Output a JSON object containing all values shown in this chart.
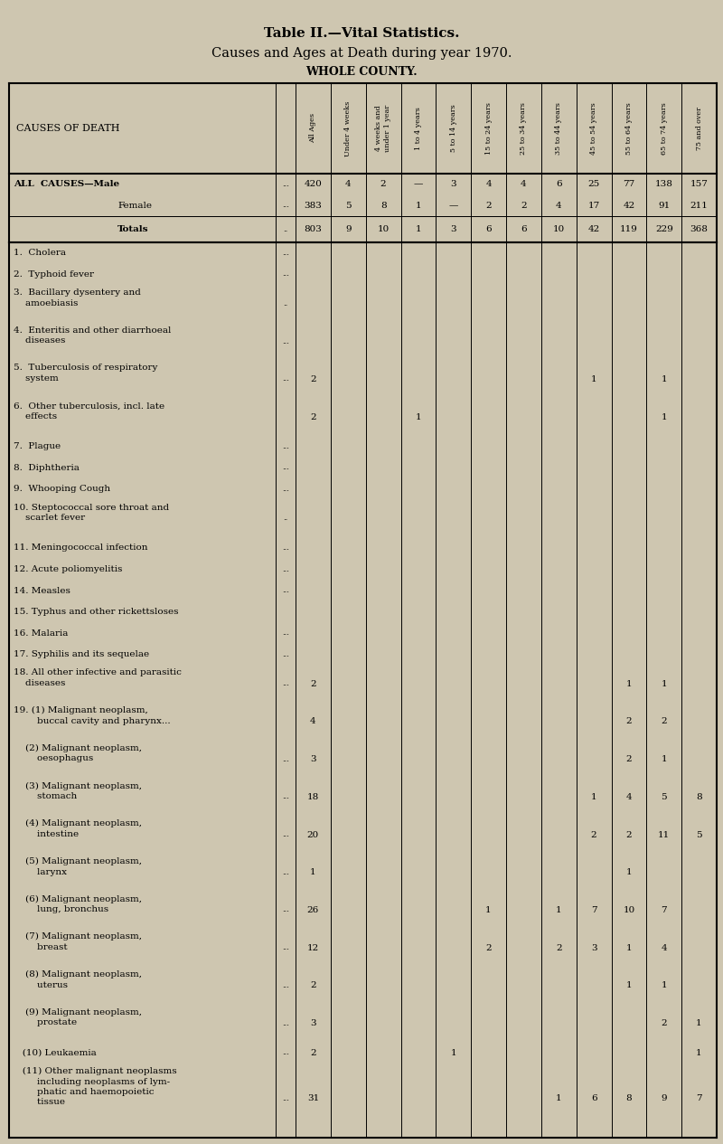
{
  "title1": "Table II.—Vital Statistics.",
  "title2": "Causes and Ages at Death during year 1970.",
  "title3": "WHOLE COUNTY.",
  "bg_color": "#cec6b0",
  "col_header_texts": [
    "All Ages",
    "Under 4 weeks",
    "4 weeks and\nunder 1 year",
    "1 to 4 years",
    "5 to 14 years",
    "15 to 24 years",
    "25 to 34 years",
    "35 to 44 years",
    "45 to 54 years",
    "55 to 64 years",
    "65 to 74 years",
    "75 and over"
  ],
  "rows": [
    {
      "label": "ALL  CAUSES—Male",
      "sub": false,
      "bold": true,
      "dots": "...",
      "lines": 1,
      "totals": false,
      "separator_before": false,
      "separator_after": false,
      "data": [
        "420",
        "4",
        "2",
        "—",
        "3",
        "4",
        "4",
        "6",
        "25",
        "77",
        "138",
        "157"
      ]
    },
    {
      "label": "Female",
      "sub": true,
      "bold": false,
      "dots": "...",
      "lines": 1,
      "totals": false,
      "separator_before": false,
      "separator_after": true,
      "data": [
        "383",
        "5",
        "8",
        "1",
        "—",
        "2",
        "2",
        "4",
        "17",
        "42",
        "91",
        "211"
      ]
    },
    {
      "label": "Totals",
      "sub": true,
      "bold": true,
      "dots": "..",
      "lines": 1,
      "totals": true,
      "separator_before": false,
      "separator_after": true,
      "data": [
        "803",
        "9",
        "10",
        "1",
        "3",
        "6",
        "6",
        "10",
        "42",
        "119",
        "229",
        "368"
      ]
    },
    {
      "label": "1.  Cholera",
      "sub": false,
      "bold": false,
      "dots": "...",
      "lines": 1,
      "totals": false,
      "separator_before": true,
      "separator_after": false,
      "data": [
        "",
        "",
        "",
        "",
        "",
        "",
        "",
        "",
        "",
        "",
        "",
        ""
      ]
    },
    {
      "label": "2.  Typhoid fever",
      "sub": false,
      "bold": false,
      "dots": "...",
      "lines": 1,
      "totals": false,
      "separator_before": false,
      "separator_after": false,
      "data": [
        "",
        "",
        "",
        "",
        "",
        "",
        "",
        "",
        "",
        "",
        "",
        ""
      ]
    },
    {
      "label": "3.  Bacillary dysentery and\n    amoebiasis",
      "sub": false,
      "bold": false,
      "dots": "..",
      "lines": 2,
      "totals": false,
      "separator_before": false,
      "separator_after": false,
      "data": [
        "",
        "",
        "",
        "",
        "",
        "",
        "",
        "",
        "",
        "",
        "",
        ""
      ]
    },
    {
      "label": "4.  Enteritis and other diarrhoeal\n    diseases",
      "sub": false,
      "bold": false,
      "dots": "...",
      "lines": 2,
      "totals": false,
      "separator_before": false,
      "separator_after": false,
      "data": [
        "",
        "",
        "",
        "",
        "",
        "",
        "",
        "",
        "",
        "",
        "",
        ""
      ]
    },
    {
      "label": "5.  Tuberculosis of respiratory\n    system",
      "sub": false,
      "bold": false,
      "dots": "...",
      "lines": 2,
      "totals": false,
      "separator_before": false,
      "separator_after": false,
      "data": [
        "2",
        "",
        "",
        "",
        "",
        "",
        "",
        "",
        "1",
        "",
        "1",
        ""
      ]
    },
    {
      "label": "6.  Other tuberculosis, incl. late\n    effects",
      "sub": false,
      "bold": false,
      "dots": "",
      "lines": 2,
      "totals": false,
      "separator_before": false,
      "separator_after": false,
      "data": [
        "2",
        "",
        "",
        "1",
        "",
        "",
        "",
        "",
        "",
        "",
        "1",
        ""
      ]
    },
    {
      "label": "7.  Plague",
      "sub": false,
      "bold": false,
      "dots": "...",
      "lines": 1,
      "totals": false,
      "separator_before": false,
      "separator_after": false,
      "data": [
        "",
        "",
        "",
        "",
        "",
        "",
        "",
        "",
        "",
        "",
        "",
        ""
      ]
    },
    {
      "label": "8.  Diphtheria",
      "sub": false,
      "bold": false,
      "dots": "...",
      "lines": 1,
      "totals": false,
      "separator_before": false,
      "separator_after": false,
      "data": [
        "",
        "",
        "",
        "",
        "",
        "",
        "",
        "",
        "",
        "",
        "",
        ""
      ]
    },
    {
      "label": "9.  Whooping Cough",
      "sub": false,
      "bold": false,
      "dots": "...",
      "lines": 1,
      "totals": false,
      "separator_before": false,
      "separator_after": false,
      "data": [
        "",
        "",
        "",
        "",
        "",
        "",
        "",
        "",
        "",
        "",
        "",
        ""
      ]
    },
    {
      "label": "10. Steptococcal sore throat and\n    scarlet fever",
      "sub": false,
      "bold": false,
      "dots": "..",
      "lines": 2,
      "totals": false,
      "separator_before": false,
      "separator_after": false,
      "data": [
        "",
        "",
        "",
        "",
        "",
        "",
        "",
        "",
        "",
        "",
        "",
        ""
      ]
    },
    {
      "label": "11. Meningococcal infection",
      "sub": false,
      "bold": false,
      "dots": "...",
      "lines": 1,
      "totals": false,
      "separator_before": false,
      "separator_after": false,
      "data": [
        "",
        "",
        "",
        "",
        "",
        "",
        "",
        "",
        "",
        "",
        "",
        ""
      ]
    },
    {
      "label": "12. Acute poliomyelitis",
      "sub": false,
      "bold": false,
      "dots": "...",
      "lines": 1,
      "totals": false,
      "separator_before": false,
      "separator_after": false,
      "data": [
        "",
        "",
        "",
        "",
        "",
        "",
        "",
        "",
        "",
        "",
        "",
        ""
      ]
    },
    {
      "label": "14. Measles",
      "sub": false,
      "bold": false,
      "dots": "...",
      "lines": 1,
      "totals": false,
      "separator_before": false,
      "separator_after": false,
      "data": [
        "",
        "",
        "",
        "",
        "",
        "",
        "",
        "",
        "",
        "",
        "",
        ""
      ]
    },
    {
      "label": "15. Typhus and other rickettsloses",
      "sub": false,
      "bold": false,
      "dots": "",
      "lines": 1,
      "totals": false,
      "separator_before": false,
      "separator_after": false,
      "data": [
        "",
        "",
        "",
        "",
        "",
        "",
        "",
        "",
        "",
        "",
        "",
        ""
      ]
    },
    {
      "label": "16. Malaria",
      "sub": false,
      "bold": false,
      "dots": "...",
      "lines": 1,
      "totals": false,
      "separator_before": false,
      "separator_after": false,
      "data": [
        "",
        "",
        "",
        "",
        "",
        "",
        "",
        "",
        "",
        "",
        "",
        ""
      ]
    },
    {
      "label": "17. Syphilis and its sequelae",
      "sub": false,
      "bold": false,
      "dots": "...",
      "lines": 1,
      "totals": false,
      "separator_before": false,
      "separator_after": false,
      "data": [
        "",
        "",
        "",
        "",
        "",
        "",
        "",
        "",
        "",
        "",
        "",
        ""
      ]
    },
    {
      "label": "18. All other infective and parasitic\n    diseases",
      "sub": false,
      "bold": false,
      "dots": "...",
      "lines": 2,
      "totals": false,
      "separator_before": false,
      "separator_after": false,
      "data": [
        "2",
        "",
        "",
        "",
        "",
        "",
        "",
        "",
        "",
        "1",
        "1",
        ""
      ]
    },
    {
      "label": "19. (1) Malignant neoplasm,\n        buccal cavity and pharynx...",
      "sub": false,
      "bold": false,
      "dots": "",
      "lines": 2,
      "totals": false,
      "separator_before": false,
      "separator_after": false,
      "data": [
        "4",
        "",
        "",
        "",
        "",
        "",
        "",
        "",
        "",
        "2",
        "2",
        ""
      ]
    },
    {
      "label": "    (2) Malignant neoplasm,\n        oesophagus",
      "sub": false,
      "bold": false,
      "dots": "...",
      "lines": 2,
      "totals": false,
      "separator_before": false,
      "separator_after": false,
      "data": [
        "3",
        "",
        "",
        "",
        "",
        "",
        "",
        "",
        "",
        "2",
        "1",
        ""
      ]
    },
    {
      "label": "    (3) Malignant neoplasm,\n        stomach",
      "sub": false,
      "bold": false,
      "dots": "...",
      "lines": 2,
      "totals": false,
      "separator_before": false,
      "separator_after": false,
      "data": [
        "18",
        "",
        "",
        "",
        "",
        "",
        "",
        "",
        "1",
        "4",
        "5",
        "8"
      ]
    },
    {
      "label": "    (4) Malignant neoplasm,\n        intestine",
      "sub": false,
      "bold": false,
      "dots": "...",
      "lines": 2,
      "totals": false,
      "separator_before": false,
      "separator_after": false,
      "data": [
        "20",
        "",
        "",
        "",
        "",
        "",
        "",
        "",
        "2",
        "2",
        "11",
        "5"
      ]
    },
    {
      "label": "    (5) Malignant neoplasm,\n        larynx",
      "sub": false,
      "bold": false,
      "dots": "...",
      "lines": 2,
      "totals": false,
      "separator_before": false,
      "separator_after": false,
      "data": [
        "1",
        "",
        "",
        "",
        "",
        "",
        "",
        "",
        "",
        "1",
        "",
        ""
      ]
    },
    {
      "label": "    (6) Malignant neoplasm,\n        lung, bronchus",
      "sub": false,
      "bold": false,
      "dots": "...",
      "lines": 2,
      "totals": false,
      "separator_before": false,
      "separator_after": false,
      "data": [
        "26",
        "",
        "",
        "",
        "",
        "1",
        "",
        "1",
        "7",
        "10",
        "7",
        ""
      ]
    },
    {
      "label": "    (7) Malignant neoplasm,\n        breast",
      "sub": false,
      "bold": false,
      "dots": "...",
      "lines": 2,
      "totals": false,
      "separator_before": false,
      "separator_after": false,
      "data": [
        "12",
        "",
        "",
        "",
        "",
        "2",
        "",
        "2",
        "3",
        "1",
        "4",
        ""
      ]
    },
    {
      "label": "    (8) Malignant neoplasm,\n        uterus",
      "sub": false,
      "bold": false,
      "dots": "...",
      "lines": 2,
      "totals": false,
      "separator_before": false,
      "separator_after": false,
      "data": [
        "2",
        "",
        "",
        "",
        "",
        "",
        "",
        "",
        "",
        "1",
        "1",
        ""
      ]
    },
    {
      "label": "    (9) Malignant neoplasm,\n        prostate",
      "sub": false,
      "bold": false,
      "dots": "...",
      "lines": 2,
      "totals": false,
      "separator_before": false,
      "separator_after": false,
      "data": [
        "3",
        "",
        "",
        "",
        "",
        "",
        "",
        "",
        "",
        "",
        "2",
        "1"
      ]
    },
    {
      "label": "   (10) Leukaemia",
      "sub": false,
      "bold": false,
      "dots": "...",
      "lines": 1,
      "totals": false,
      "separator_before": false,
      "separator_after": false,
      "data": [
        "2",
        "",
        "",
        "",
        "1",
        "",
        "",
        "",
        "",
        "",
        "",
        "1"
      ]
    },
    {
      "label": "   (11) Other malignant neoplasms\n        including neoplasms of lym-\n        phatic and haemopoietic\n        tissue",
      "sub": false,
      "bold": false,
      "dots": "...",
      "lines": 4,
      "totals": false,
      "separator_before": false,
      "separator_after": false,
      "data": [
        "31",
        "",
        "",
        "",
        "",
        "",
        "",
        "1",
        "6",
        "8",
        "9",
        "7"
      ]
    }
  ]
}
